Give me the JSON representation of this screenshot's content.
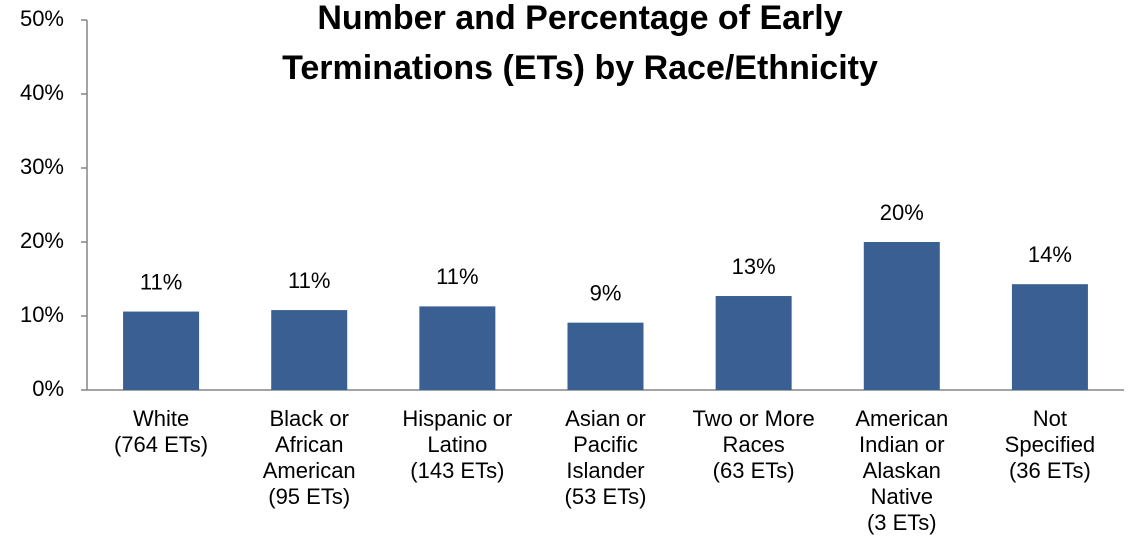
{
  "chart_data": {
    "type": "bar",
    "title": [
      "Number and Percentage of Early",
      "Terminations (ETs) by Race/Ethnicity"
    ],
    "categories": [
      [
        "White",
        "(764 ETs)"
      ],
      [
        "Black or",
        "African",
        "American",
        "(95 ETs)"
      ],
      [
        "Hispanic or",
        "Latino",
        "(143 ETs)"
      ],
      [
        "Asian or",
        "Pacific",
        "Islander",
        "(53 ETs)"
      ],
      [
        "Two or More",
        "Races",
        "(63 ETs)"
      ],
      [
        "American",
        "Indian or",
        "Alaskan",
        "Native",
        "(3 ETs)"
      ],
      [
        "Not",
        "Specified",
        "(36 ETs)"
      ]
    ],
    "values": [
      10.6,
      10.8,
      11.3,
      9.1,
      12.7,
      20.0,
      14.3
    ],
    "value_labels": [
      "11%",
      "11%",
      "11%",
      "9%",
      "13%",
      "20%",
      "14%"
    ],
    "color": "#3a5f93",
    "ylim": [
      0,
      50
    ],
    "yticks": [
      {
        "value": 0,
        "label": "0%"
      },
      {
        "value": 10,
        "label": "10%"
      },
      {
        "value": 20,
        "label": "20%"
      },
      {
        "value": 30,
        "label": "30%"
      },
      {
        "value": 40,
        "label": "40%"
      },
      {
        "value": 50,
        "label": "50%"
      }
    ],
    "grid": false
  }
}
